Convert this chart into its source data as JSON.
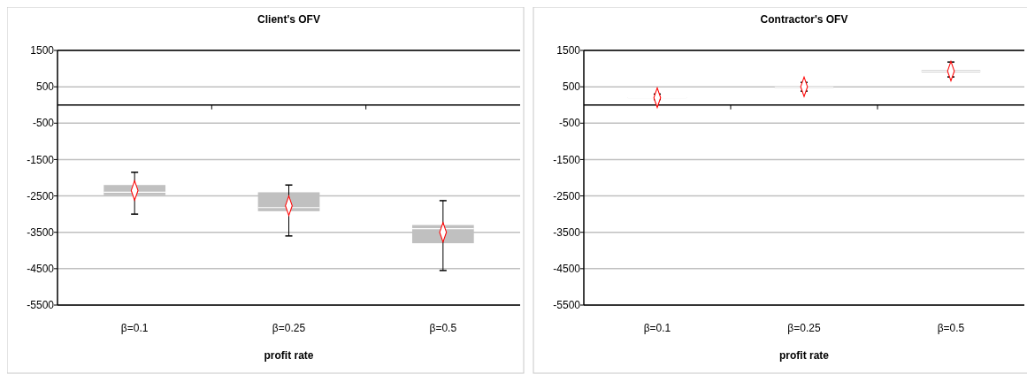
{
  "chart_data": [
    {
      "type": "box",
      "title": "Client's OFV",
      "xlabel": "profit rate",
      "categories": [
        "β=0.1",
        "β=0.25",
        "β=0.5"
      ],
      "ylim": [
        -5500,
        1500
      ],
      "yticks": [
        -5500,
        -4500,
        -3500,
        -2500,
        -1500,
        -500,
        500,
        1500
      ],
      "grid": "y",
      "marker": "diamond",
      "series": [
        {
          "color": "#c0c0c0",
          "boxes": [
            {
              "low": -3000,
              "q1": -2480,
              "median": -2400,
              "q3": -2200,
              "high": -1850,
              "mean": -2350
            },
            {
              "low": -3600,
              "q1": -2920,
              "median": -2820,
              "q3": -2400,
              "high": -2200,
              "mean": -2770
            },
            {
              "low": -4550,
              "q1": -3800,
              "median": -3400,
              "q3": -3300,
              "high": -2630,
              "mean": -3500
            }
          ]
        }
      ]
    },
    {
      "type": "box",
      "title": "Contractor's OFV",
      "xlabel": "profit rate",
      "categories": [
        "β=0.1",
        "β=0.25",
        "β=0.5"
      ],
      "ylim": [
        -5500,
        1500
      ],
      "yticks": [
        -5500,
        -4500,
        -3500,
        -2500,
        -1500,
        -500,
        500,
        1500
      ],
      "grid": "y",
      "marker": "diamond",
      "series": [
        {
          "color": "#c0c0c0",
          "boxes": [
            {
              "low": 150,
              "q1": 190,
              "median": 200,
              "q3": 210,
              "high": 300,
              "mean": 200
            },
            {
              "low": 380,
              "q1": 470,
              "median": 480,
              "q3": 490,
              "high": 620,
              "mean": 500
            },
            {
              "low": 770,
              "q1": 900,
              "median": 930,
              "q3": 960,
              "high": 1180,
              "mean": 930
            }
          ]
        }
      ]
    }
  ]
}
